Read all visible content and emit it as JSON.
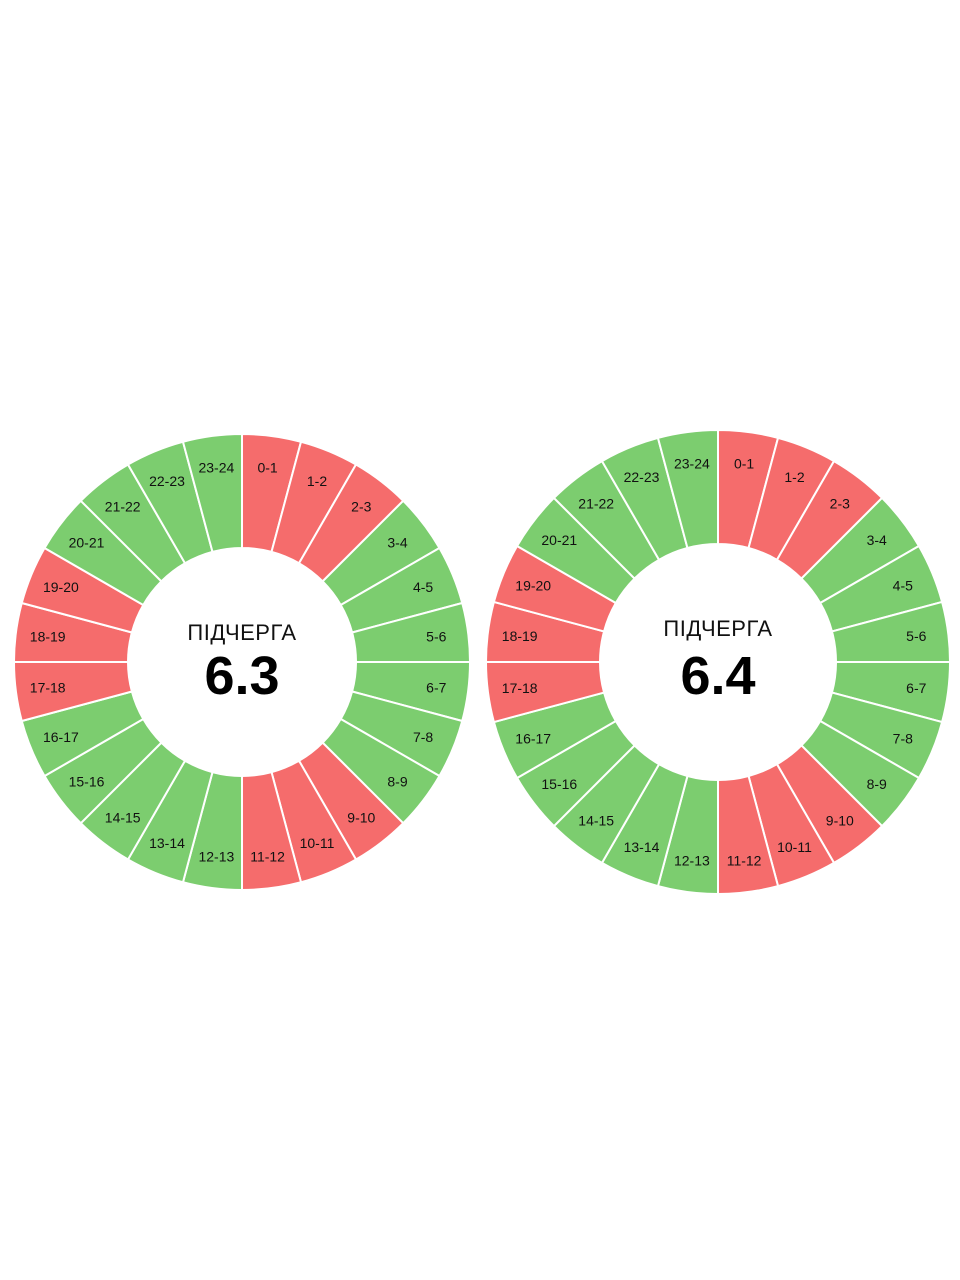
{
  "colors": {
    "on": "#7ccd6f",
    "off": "#f56c6c",
    "separator": "#ffffff"
  },
  "chart_data": [
    {
      "type": "pie",
      "title": "ПІДЧЕРГА",
      "value": "6.3",
      "categories": [
        "0-1",
        "1-2",
        "2-3",
        "3-4",
        "4-5",
        "5-6",
        "6-7",
        "7-8",
        "8-9",
        "9-10",
        "10-11",
        "11-12",
        "12-13",
        "13-14",
        "14-15",
        "15-16",
        "16-17",
        "17-18",
        "18-19",
        "19-20",
        "20-21",
        "21-22",
        "22-23",
        "23-24"
      ],
      "status": [
        "off",
        "off",
        "off",
        "on",
        "on",
        "on",
        "on",
        "on",
        "on",
        "off",
        "off",
        "off",
        "on",
        "on",
        "on",
        "on",
        "on",
        "off",
        "off",
        "off",
        "on",
        "on",
        "on",
        "on"
      ]
    },
    {
      "type": "pie",
      "title": "ПІДЧЕРГА",
      "value": "6.4",
      "categories": [
        "0-1",
        "1-2",
        "2-3",
        "3-4",
        "4-5",
        "5-6",
        "6-7",
        "7-8",
        "8-9",
        "9-10",
        "10-11",
        "11-12",
        "12-13",
        "13-14",
        "14-15",
        "15-16",
        "16-17",
        "17-18",
        "18-19",
        "19-20",
        "20-21",
        "21-22",
        "22-23",
        "23-24"
      ],
      "status": [
        "off",
        "off",
        "off",
        "on",
        "on",
        "on",
        "on",
        "on",
        "on",
        "off",
        "off",
        "off",
        "on",
        "on",
        "on",
        "on",
        "on",
        "off",
        "off",
        "off",
        "on",
        "on",
        "on",
        "on"
      ]
    }
  ]
}
